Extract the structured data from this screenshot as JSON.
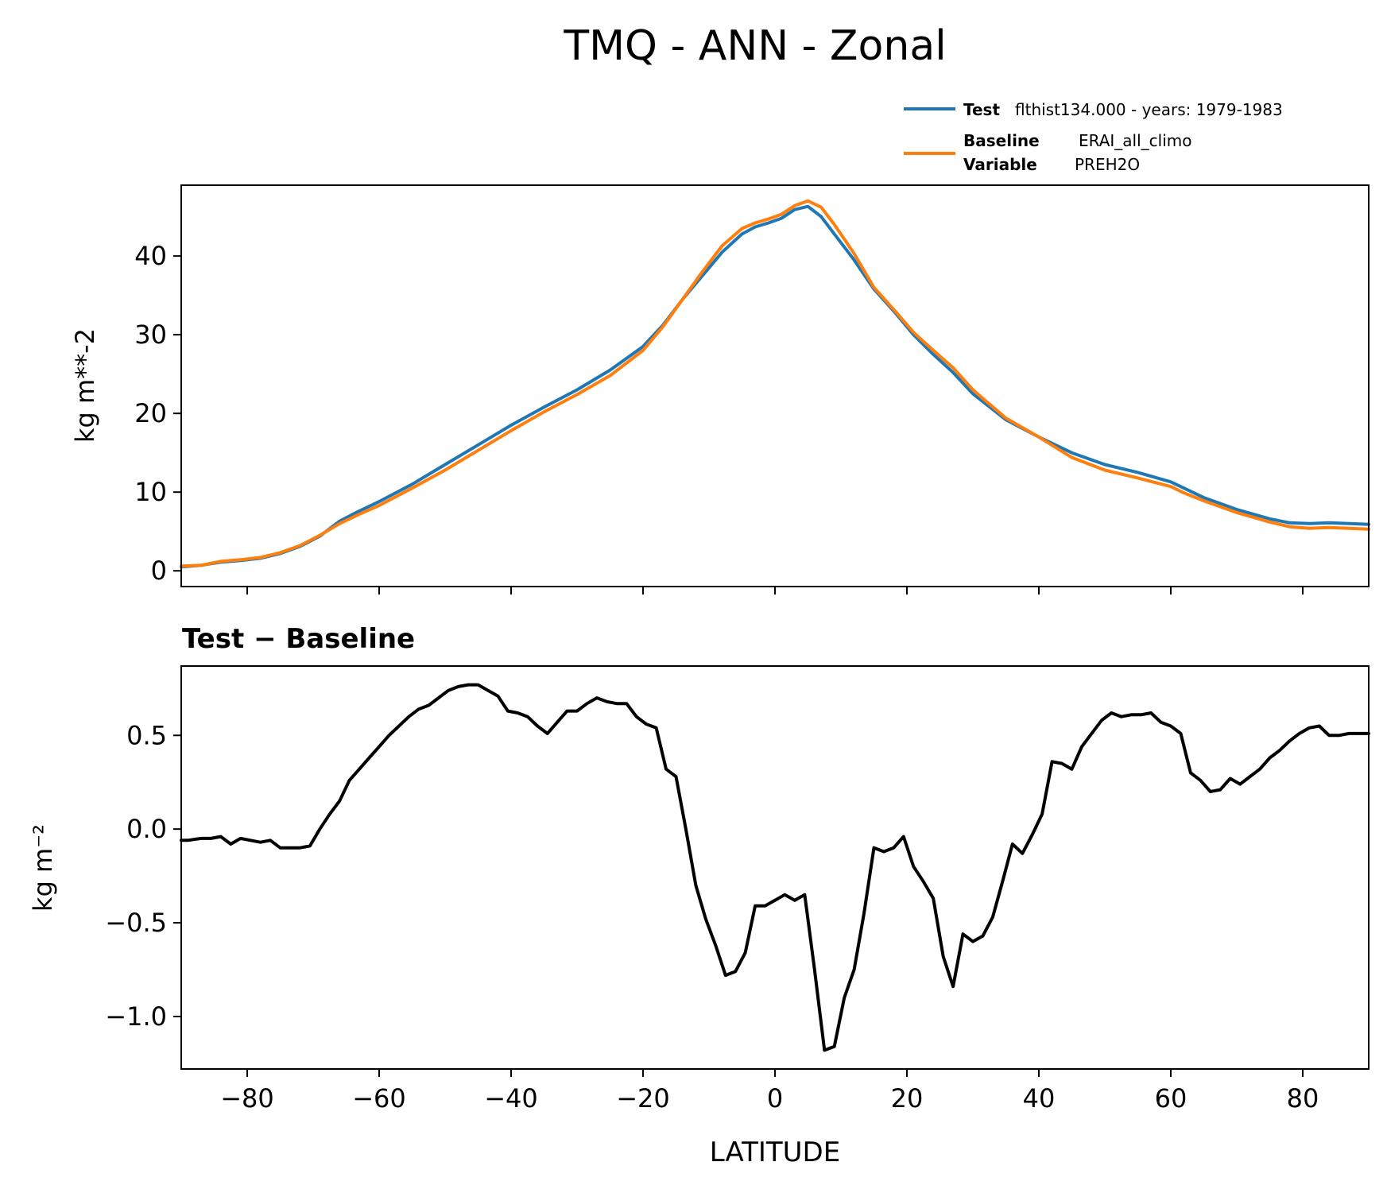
{
  "figure": {
    "title": "TMQ - ANN - Zonal"
  },
  "legend": {
    "test_key": "Test",
    "test_value": "flthist134.000 - years: 1979-1983",
    "baseline_key": "Baseline",
    "baseline_value": "ERAI_all_climo",
    "variable_key": "Variable",
    "variable_value": "PREH2O"
  },
  "colors": {
    "test": "#1f77b4",
    "baseline": "#ff7f0e",
    "diff": "#000000"
  },
  "chart_data": [
    {
      "type": "line",
      "title": "",
      "xlabel": "",
      "ylabel": "kg m**-2",
      "xlim": [
        -90,
        90
      ],
      "ylim": [
        -2,
        49
      ],
      "yticks": [
        0,
        10,
        20,
        30,
        40
      ],
      "ytick_labels": [
        "0",
        "10",
        "20",
        "30",
        "40"
      ],
      "xticks": [
        -80,
        -60,
        -40,
        -20,
        0,
        20,
        40,
        60,
        80
      ],
      "legend_position": "above-right",
      "x": [
        -90,
        -87,
        -84,
        -81,
        -78,
        -75,
        -72,
        -69,
        -66,
        -63,
        -60,
        -55,
        -50,
        -45,
        -40,
        -35,
        -30,
        -25,
        -20,
        -17,
        -14,
        -11,
        -8,
        -5,
        -3,
        -1,
        1,
        3,
        5,
        7,
        9,
        12,
        15,
        18,
        21,
        24,
        27,
        30,
        35,
        40,
        45,
        50,
        55,
        60,
        62,
        65,
        70,
        75,
        78,
        81,
        84,
        90
      ],
      "series": [
        {
          "name": "Test",
          "values": [
            0.5,
            0.7,
            1.1,
            1.3,
            1.6,
            2.2,
            3.1,
            4.4,
            6.3,
            7.6,
            8.8,
            11.0,
            13.5,
            16.0,
            18.5,
            20.8,
            23.0,
            25.5,
            28.5,
            31.2,
            34.5,
            37.5,
            40.5,
            42.8,
            43.7,
            44.2,
            44.8,
            45.9,
            46.3,
            45.0,
            42.8,
            39.5,
            35.8,
            33.0,
            30.0,
            27.5,
            25.2,
            22.5,
            19.2,
            17.0,
            15.0,
            13.5,
            12.5,
            11.3,
            10.5,
            9.3,
            7.8,
            6.6,
            6.1,
            6.0,
            6.1,
            5.9
          ]
        },
        {
          "name": "Baseline",
          "values": [
            0.6,
            0.7,
            1.2,
            1.4,
            1.7,
            2.3,
            3.2,
            4.5,
            6.0,
            7.2,
            8.3,
            10.5,
            12.8,
            15.3,
            17.8,
            20.2,
            22.4,
            24.8,
            28.0,
            31.0,
            34.5,
            38.0,
            41.3,
            43.5,
            44.2,
            44.7,
            45.3,
            46.4,
            47.0,
            46.2,
            44.0,
            40.3,
            36.0,
            33.2,
            30.3,
            28.0,
            25.8,
            23.0,
            19.4,
            17.0,
            14.4,
            12.8,
            11.8,
            10.7,
            9.9,
            8.9,
            7.4,
            6.2,
            5.6,
            5.4,
            5.5,
            5.3
          ]
        }
      ]
    },
    {
      "type": "line",
      "title": "Test − Baseline",
      "xlabel": "LATITUDE",
      "ylabel": "kg m⁻²",
      "xlim": [
        -90,
        90
      ],
      "ylim": [
        -1.28,
        0.87
      ],
      "yticks": [
        -1.0,
        -0.5,
        0.0,
        0.5
      ],
      "ytick_labels": [
        "−1.0",
        "−0.5",
        "0.0",
        "0.5"
      ],
      "xticks": [
        -80,
        -60,
        -40,
        -20,
        0,
        20,
        40,
        60,
        80
      ],
      "xtick_labels": [
        "−80",
        "−60",
        "−40",
        "−20",
        "0",
        "20",
        "40",
        "60",
        "80"
      ],
      "x": [
        -90,
        -89,
        -87,
        -85.5,
        -84,
        -82.5,
        -81,
        -79.5,
        -78,
        -76.5,
        -75,
        -73.5,
        -72,
        -70.5,
        -69,
        -67.5,
        -66,
        -64.5,
        -63,
        -61.5,
        -60,
        -58.5,
        -57,
        -55.5,
        -54,
        -52.5,
        -51,
        -49.5,
        -48,
        -46.5,
        -45,
        -43.5,
        -42,
        -40.5,
        -39,
        -37.5,
        -36,
        -34.5,
        -33,
        -31.5,
        -30,
        -28.5,
        -27,
        -25.5,
        -24,
        -22.5,
        -21,
        -19.5,
        -18,
        -16.5,
        -15,
        -13.5,
        -12,
        -10.5,
        -9,
        -7.5,
        -6,
        -4.5,
        -3,
        -1.5,
        0,
        1.5,
        3,
        4.5,
        6,
        7.5,
        9,
        10.5,
        12,
        13.5,
        15,
        16.5,
        18,
        19.5,
        21,
        22.5,
        24,
        25.5,
        27,
        28.5,
        30,
        31.5,
        33,
        34.5,
        36,
        37.5,
        39,
        40.5,
        42,
        43.5,
        45,
        46.5,
        48,
        49.5,
        51,
        52.5,
        54,
        55.5,
        57,
        58.5,
        60,
        61.5,
        63,
        64.5,
        66,
        67.5,
        69,
        70.5,
        72,
        73.5,
        75,
        76.5,
        78,
        79.5,
        81,
        82.5,
        84,
        85.5,
        87,
        88.5,
        90
      ],
      "series": [
        {
          "name": "",
          "values": [
            -0.06,
            -0.06,
            -0.05,
            -0.05,
            -0.04,
            -0.08,
            -0.05,
            -0.06,
            -0.07,
            -0.06,
            -0.1,
            -0.1,
            -0.1,
            -0.09,
            0.0,
            0.08,
            0.15,
            0.26,
            0.32,
            0.38,
            0.44,
            0.5,
            0.55,
            0.6,
            0.64,
            0.66,
            0.7,
            0.74,
            0.76,
            0.77,
            0.77,
            0.74,
            0.71,
            0.63,
            0.62,
            0.6,
            0.55,
            0.51,
            0.57,
            0.63,
            0.63,
            0.67,
            0.7,
            0.68,
            0.67,
            0.67,
            0.6,
            0.56,
            0.54,
            0.32,
            0.28,
            0.0,
            -0.3,
            -0.48,
            -0.62,
            -0.78,
            -0.76,
            -0.66,
            -0.41,
            -0.41,
            -0.38,
            -0.35,
            -0.38,
            -0.35,
            -0.75,
            -1.18,
            -1.16,
            -0.9,
            -0.75,
            -0.45,
            -0.1,
            -0.12,
            -0.1,
            -0.04,
            -0.2,
            -0.28,
            -0.37,
            -0.68,
            -0.84,
            -0.56,
            -0.6,
            -0.57,
            -0.47,
            -0.28,
            -0.08,
            -0.13,
            -0.03,
            0.08,
            0.36,
            0.35,
            0.32,
            0.44,
            0.51,
            0.58,
            0.62,
            0.6,
            0.61,
            0.61,
            0.62,
            0.57,
            0.55,
            0.51,
            0.3,
            0.26,
            0.2,
            0.21,
            0.27,
            0.24,
            0.28,
            0.32,
            0.38,
            0.42,
            0.47,
            0.51,
            0.54,
            0.55,
            0.5,
            0.5,
            0.51,
            0.51,
            0.51
          ]
        }
      ]
    }
  ]
}
